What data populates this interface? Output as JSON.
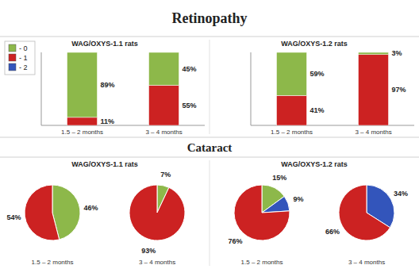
{
  "chart_data": [
    {
      "type": "bar",
      "stacked": true,
      "title": "Retinopathy",
      "subtitle": "WAG/OXYS-1.1 rats",
      "categories": [
        "1.5 – 2 months",
        "3 – 4 months"
      ],
      "series": [
        {
          "name": "- 0",
          "color": "#8db84a",
          "values": [
            89,
            45
          ],
          "value_labels": [
            "89%",
            "45%"
          ]
        },
        {
          "name": "- 1",
          "color": "#cc2222",
          "values": [
            11,
            55
          ],
          "value_labels": [
            "11%",
            "55%"
          ]
        },
        {
          "name": "- 2",
          "color": "#3355bb",
          "values": [
            null,
            null
          ]
        }
      ],
      "ylim": [
        0,
        100
      ],
      "tick_labels": "x",
      "data_labels": true,
      "legend": "upper left"
    },
    {
      "type": "bar",
      "stacked": true,
      "subtitle": "WAG/OXYS-1.2 rats",
      "categories": [
        "1.5 – 2 months",
        "3 – 4 months"
      ],
      "series": [
        {
          "color": "#8db84a",
          "values": [
            59,
            3
          ],
          "value_labels": [
            "59%",
            "3%"
          ]
        },
        {
          "color": "#cc2222",
          "values": [
            41,
            97
          ],
          "value_labels": [
            "41%",
            "97%"
          ]
        }
      ],
      "ylim": [
        0,
        100
      ],
      "tick_labels": "x",
      "data_labels": true
    },
    {
      "type": "pie",
      "title": "Cataract",
      "subtitle": "WAG/OXYS-1.1 rats",
      "xlabel": "1.5 – 2 months",
      "values": [
        46,
        54
      ],
      "value_labels": [
        "46%",
        "54%"
      ],
      "colors": [
        "#8db84a",
        "#cc2222"
      ],
      "data_labels": true
    },
    {
      "type": "pie",
      "xlabel": "3 – 4 months",
      "values": [
        7,
        93
      ],
      "value_labels": [
        "7%",
        "93%"
      ],
      "colors": [
        "#8db84a",
        "#cc2222"
      ],
      "data_labels": true
    },
    {
      "type": "pie",
      "subtitle": "WAG/OXYS-1.2 rats",
      "xlabel": "1.5 – 2 months",
      "values": [
        15,
        9,
        76
      ],
      "value_labels": [
        "15%",
        "9%",
        "76%"
      ],
      "colors": [
        "#8db84a",
        "#3355bb",
        "#cc2222"
      ],
      "data_labels": true
    },
    {
      "type": "pie",
      "xlabel": "3 – 4 months",
      "values": [
        34,
        66
      ],
      "value_labels": [
        "34%",
        "66%"
      ],
      "colors": [
        "#3355bb",
        "#cc2222"
      ],
      "data_labels": true
    }
  ]
}
